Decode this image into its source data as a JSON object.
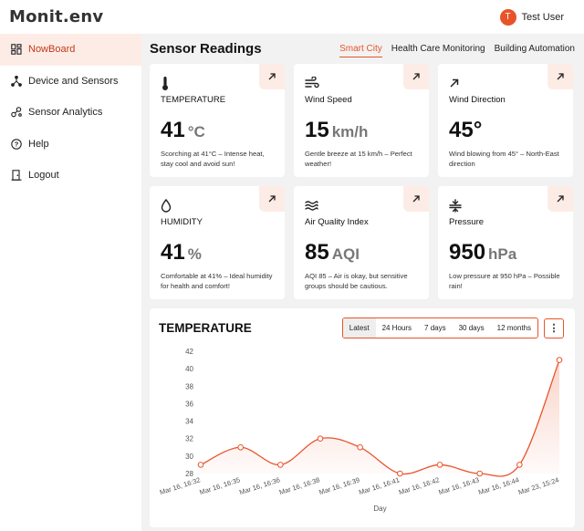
{
  "app": {
    "logo": "Monit.env"
  },
  "user": {
    "initial": "T",
    "name": "Test User"
  },
  "sidebar": {
    "items": [
      {
        "label": "NowBoard",
        "icon": "dashboard-icon",
        "active": true
      },
      {
        "label": "Device and Sensors",
        "icon": "network-icon"
      },
      {
        "label": "Sensor Analytics",
        "icon": "analytics-icon"
      },
      {
        "label": "Help",
        "icon": "help-icon"
      },
      {
        "label": "Logout",
        "icon": "door-icon"
      }
    ]
  },
  "main": {
    "title": "Sensor Readings",
    "tabs": [
      {
        "label": "Smart City",
        "active": true
      },
      {
        "label": "Health Care Monitoring"
      },
      {
        "label": "Building Automation"
      }
    ]
  },
  "cards": [
    {
      "label": "TEMPERATURE",
      "value": "41",
      "unit": "°C",
      "desc": "Scorching at 41°C – Intense heat, stay cool and avoid sun!",
      "icon": "thermometer-icon"
    },
    {
      "label": "Wind Speed",
      "value": "15",
      "unit": "km/h",
      "desc": "Gentle breeze at 15 km/h – Perfect weather!",
      "icon": "wind-icon"
    },
    {
      "label": "Wind Direction",
      "value": "45°",
      "unit": "",
      "desc": "Wind blowing from 45° – North-East direction",
      "icon": "direction-arrow-icon"
    },
    {
      "label": "HUMIDITY",
      "value": "41",
      "unit": "%",
      "desc": "Comfortable at 41% – Ideal humidity for health and comfort!",
      "icon": "droplet-icon"
    },
    {
      "label": "Air Quality Index",
      "value": "85",
      "unit": "AQI",
      "desc": "AQI 85 – Air is okay, but sensitive groups should be cautious.",
      "icon": "air-waves-icon"
    },
    {
      "label": "Pressure",
      "value": "950",
      "unit": "hPa",
      "desc": "Low pressure at 950 hPa – Possible rain!",
      "icon": "pressure-icon"
    }
  ],
  "chart_panel": {
    "title": "TEMPERATURE",
    "ranges": [
      {
        "label": "Latest",
        "active": true
      },
      {
        "label": "24 Hours"
      },
      {
        "label": "7 days"
      },
      {
        "label": "30 days"
      },
      {
        "label": "12 months"
      }
    ],
    "more_label": "⋮"
  },
  "colors": {
    "accent": "#e8542a",
    "accent_light": "#fdece6"
  },
  "chart_data": {
    "type": "area",
    "title": "",
    "xlabel": "Day",
    "ylabel": "",
    "ylim": [
      28,
      42
    ],
    "yticks": [
      28,
      30,
      32,
      34,
      36,
      38,
      40,
      42
    ],
    "categories": [
      "Mar 16, 16:32",
      "Mar 16, 16:35",
      "Mar 16, 16:36",
      "Mar 16, 16:38",
      "Mar 16, 16:39",
      "Mar 16, 16:41",
      "Mar 16, 16:42",
      "Mar 16, 16:43",
      "Mar 16, 16:44",
      "Mar 23, 15:24"
    ],
    "values": [
      29,
      31,
      29,
      32,
      31,
      28,
      29,
      28,
      29,
      41
    ],
    "grid": false,
    "legend": "none"
  }
}
